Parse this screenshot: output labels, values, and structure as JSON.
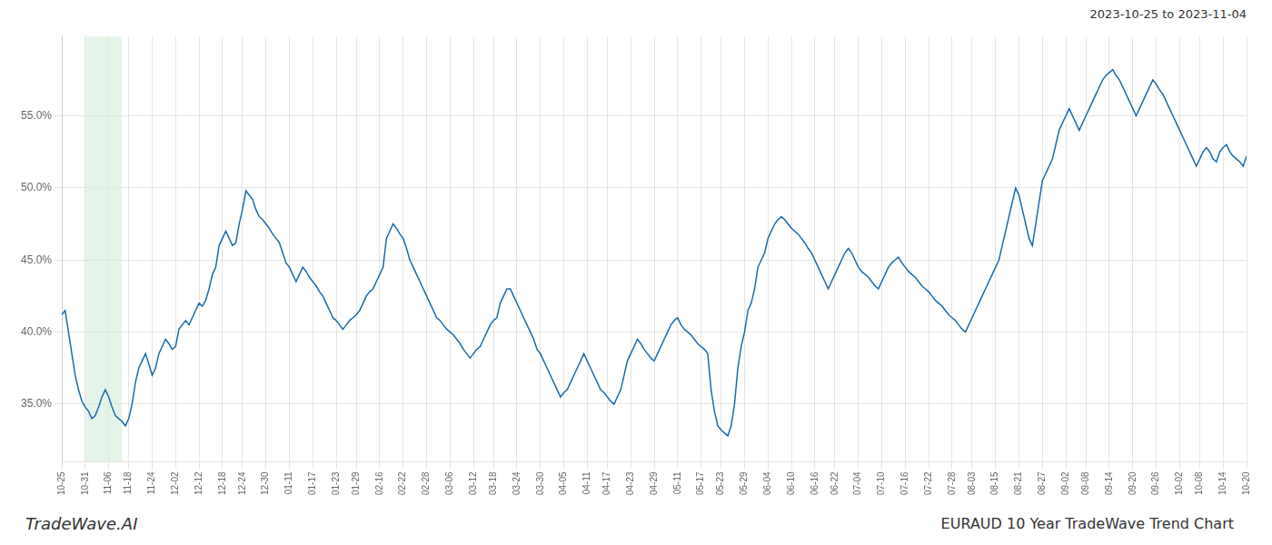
{
  "chart_data": {
    "type": "line",
    "annotations": [
      "2023-10-25 to 2023-11-04",
      "TradeWave.AI",
      "EURAUD 10 Year TradeWave Trend Chart"
    ],
    "color": "#1a6aad",
    "shaded_span": {
      "start": 7,
      "end": 18,
      "color": "#d4edda"
    },
    "grid": true,
    "ylim": [
      31.0,
      60.5
    ],
    "yticks": [
      {
        "value": 35.0,
        "label": "35.0%"
      },
      {
        "value": 40.0,
        "label": "40.0%"
      },
      {
        "value": 45.0,
        "label": "45.0%"
      },
      {
        "value": 50.0,
        "label": "50.0%"
      },
      {
        "value": 55.0,
        "label": "55.0%"
      }
    ],
    "categories": [
      "10-25",
      null,
      null,
      null,
      null,
      null,
      null,
      "10-31",
      null,
      null,
      null,
      null,
      null,
      null,
      "11-06",
      null,
      null,
      null,
      null,
      null,
      "11-18",
      null,
      null,
      null,
      null,
      null,
      null,
      "11-24",
      null,
      null,
      null,
      null,
      null,
      null,
      "12-02",
      null,
      null,
      null,
      null,
      null,
      null,
      "12-12",
      null,
      null,
      null,
      null,
      null,
      null,
      "12-18",
      null,
      null,
      null,
      null,
      null,
      "12-24",
      null,
      null,
      null,
      null,
      null,
      null,
      "12-30",
      null,
      null,
      null,
      null,
      null,
      null,
      "01-11",
      null,
      null,
      null,
      null,
      null,
      null,
      "01-17",
      null,
      null,
      null,
      null,
      null,
      null,
      "01-23",
      null,
      null,
      null,
      null,
      null,
      "01-29",
      null,
      null,
      null,
      null,
      null,
      null,
      "02-16",
      null,
      null,
      null,
      null,
      null,
      null,
      "02-22",
      null,
      null,
      null,
      null,
      null,
      null,
      "02-28",
      null,
      null,
      null,
      null,
      null,
      null,
      "03-06",
      null,
      null,
      null,
      null,
      null,
      null,
      "03-12",
      null,
      null,
      null,
      null,
      null,
      "03-18",
      null,
      null,
      null,
      null,
      null,
      null,
      "03-24",
      null,
      null,
      null,
      null,
      null,
      null,
      "03-30",
      null,
      null,
      null,
      null,
      null,
      null,
      "04-05",
      null,
      null,
      null,
      null,
      null,
      null,
      "04-11",
      null,
      null,
      null,
      null,
      null,
      "04-17",
      null,
      null,
      null,
      null,
      null,
      null,
      "04-23",
      null,
      null,
      null,
      null,
      null,
      null,
      "04-29",
      null,
      null,
      null,
      null,
      null,
      null,
      "05-11",
      null,
      null,
      null,
      null,
      null,
      null,
      "05-17",
      null,
      null,
      null,
      null,
      null,
      "05-23",
      null,
      null,
      null,
      null,
      null,
      null,
      "05-29",
      null,
      null,
      null,
      null,
      null,
      null,
      "06-04",
      null,
      null,
      null,
      null,
      null,
      null,
      "06-10",
      null,
      null,
      null,
      null,
      null,
      null,
      "06-16",
      null,
      null,
      null,
      null,
      null,
      "06-22",
      null,
      null,
      null,
      null,
      null,
      null,
      "07-04",
      null,
      null,
      null,
      null,
      null,
      null,
      "07-10",
      null,
      null,
      null,
      null,
      null,
      null,
      "07-16",
      null,
      null,
      null,
      null,
      null,
      null,
      "07-22",
      null,
      null,
      null,
      null,
      null,
      null,
      "07-28",
      null,
      null,
      null,
      null,
      null,
      "08-03",
      null,
      null,
      null,
      null,
      null,
      null,
      "08-15",
      null,
      null,
      null,
      null,
      null,
      null,
      "08-21",
      null,
      null,
      null,
      null,
      null,
      null,
      "08-27",
      null,
      null,
      null,
      null,
      null,
      null,
      "09-02",
      null,
      null,
      null,
      null,
      null,
      "09-08",
      null,
      null,
      null,
      null,
      null,
      null,
      "09-14",
      null,
      null,
      null,
      null,
      null,
      null,
      "09-20",
      null,
      null,
      null,
      null,
      null,
      null,
      "09-26",
      null,
      null,
      null,
      null,
      null,
      null,
      "10-02",
      null,
      null,
      null,
      null,
      null,
      "10-08",
      null,
      null,
      null,
      null,
      null,
      null,
      "10-14",
      null,
      null,
      null,
      null,
      null,
      null,
      "10-20"
    ],
    "values": [
      41.2,
      41.5,
      40.0,
      38.5,
      37.0,
      36.0,
      35.2,
      34.8,
      34.5,
      34.0,
      34.2,
      34.8,
      35.5,
      36.0,
      35.5,
      34.8,
      34.2,
      34.0,
      33.8,
      33.5,
      34.0,
      35.0,
      36.5,
      37.5,
      38.0,
      38.5,
      37.8,
      37.0,
      37.5,
      38.5,
      39.0,
      39.5,
      39.2,
      38.8,
      39.0,
      40.2,
      40.5,
      40.8,
      40.5,
      41.0,
      41.5,
      42.0,
      41.8,
      42.2,
      43.0,
      44.0,
      44.5,
      46.0,
      46.5,
      47.0,
      46.5,
      46.0,
      46.2,
      47.5,
      48.5,
      49.8,
      49.5,
      49.2,
      48.5,
      48.0,
      47.8,
      47.5,
      47.2,
      46.8,
      46.5,
      46.2,
      45.5,
      44.8,
      44.5,
      44.0,
      43.5,
      44.0,
      44.5,
      44.2,
      43.8,
      43.5,
      43.2,
      42.8,
      42.5,
      42.0,
      41.5,
      41.0,
      40.8,
      40.5,
      40.2,
      40.5,
      40.8,
      41.0,
      41.2,
      41.5,
      42.0,
      42.5,
      42.8,
      43.0,
      43.5,
      44.0,
      44.5,
      46.5,
      47.0,
      47.5,
      47.2,
      46.8,
      46.5,
      45.8,
      45.0,
      44.5,
      44.0,
      43.5,
      43.0,
      42.5,
      42.0,
      41.5,
      41.0,
      40.8,
      40.5,
      40.2,
      40.0,
      39.8,
      39.5,
      39.2,
      38.8,
      38.5,
      38.2,
      38.5,
      38.8,
      39.0,
      39.5,
      40.0,
      40.5,
      40.8,
      41.0,
      42.0,
      42.5,
      43.0,
      43.0,
      42.5,
      42.0,
      41.5,
      41.0,
      40.5,
      40.0,
      39.5,
      38.8,
      38.5,
      38.0,
      37.5,
      37.0,
      36.5,
      36.0,
      35.5,
      35.8,
      36.0,
      36.5,
      37.0,
      37.5,
      38.0,
      38.5,
      38.0,
      37.5,
      37.0,
      36.5,
      36.0,
      35.8,
      35.5,
      35.2,
      35.0,
      35.5,
      36.0,
      37.0,
      38.0,
      38.5,
      39.0,
      39.5,
      39.2,
      38.8,
      38.5,
      38.2,
      38.0,
      38.5,
      39.0,
      39.5,
      40.0,
      40.5,
      40.8,
      41.0,
      40.5,
      40.2,
      40.0,
      39.8,
      39.5,
      39.2,
      39.0,
      38.8,
      38.5,
      36.0,
      34.5,
      33.5,
      33.2,
      33.0,
      32.8,
      33.5,
      35.0,
      37.5,
      39.0,
      40.0,
      41.5,
      42.0,
      43.0,
      44.5,
      45.0,
      45.5,
      46.5,
      47.0,
      47.5,
      47.8,
      48.0,
      47.8,
      47.5,
      47.2,
      47.0,
      46.8,
      46.5,
      46.2,
      45.8,
      45.5,
      45.0,
      44.5,
      44.0,
      43.5,
      43.0,
      43.5,
      44.0,
      44.5,
      45.0,
      45.5,
      45.8,
      45.5,
      45.0,
      44.5,
      44.2,
      44.0,
      43.8,
      43.5,
      43.2,
      43.0,
      43.5,
      44.0,
      44.5,
      44.8,
      45.0,
      45.2,
      44.8,
      44.5,
      44.2,
      44.0,
      43.8,
      43.5,
      43.2,
      43.0,
      42.8,
      42.5,
      42.2,
      42.0,
      41.8,
      41.5,
      41.2,
      41.0,
      40.8,
      40.5,
      40.2,
      40.0,
      40.5,
      41.0,
      41.5,
      42.0,
      42.5,
      43.0,
      43.5,
      44.0,
      44.5,
      45.0,
      46.0,
      47.0,
      48.0,
      49.0,
      50.0,
      49.5,
      48.5,
      47.5,
      46.5,
      46.0,
      47.5,
      49.0,
      50.5,
      51.0,
      51.5,
      52.0,
      53.0,
      54.0,
      54.5,
      55.0,
      55.5,
      55.0,
      54.5,
      54.0,
      54.5,
      55.0,
      55.5,
      56.0,
      56.5,
      57.0,
      57.5,
      57.8,
      58.0,
      58.2,
      57.8,
      57.5,
      57.0,
      56.5,
      56.0,
      55.5,
      55.0,
      55.5,
      56.0,
      56.5,
      57.0,
      57.5,
      57.2,
      56.8,
      56.5,
      56.0,
      55.5,
      55.0,
      54.5,
      54.0,
      53.5,
      53.0,
      52.5,
      52.0,
      51.5,
      52.0,
      52.5,
      52.8,
      52.5,
      52.0,
      51.8,
      52.5,
      52.8,
      53.0,
      52.5,
      52.2,
      52.0,
      51.8,
      51.5,
      52.2
    ]
  }
}
